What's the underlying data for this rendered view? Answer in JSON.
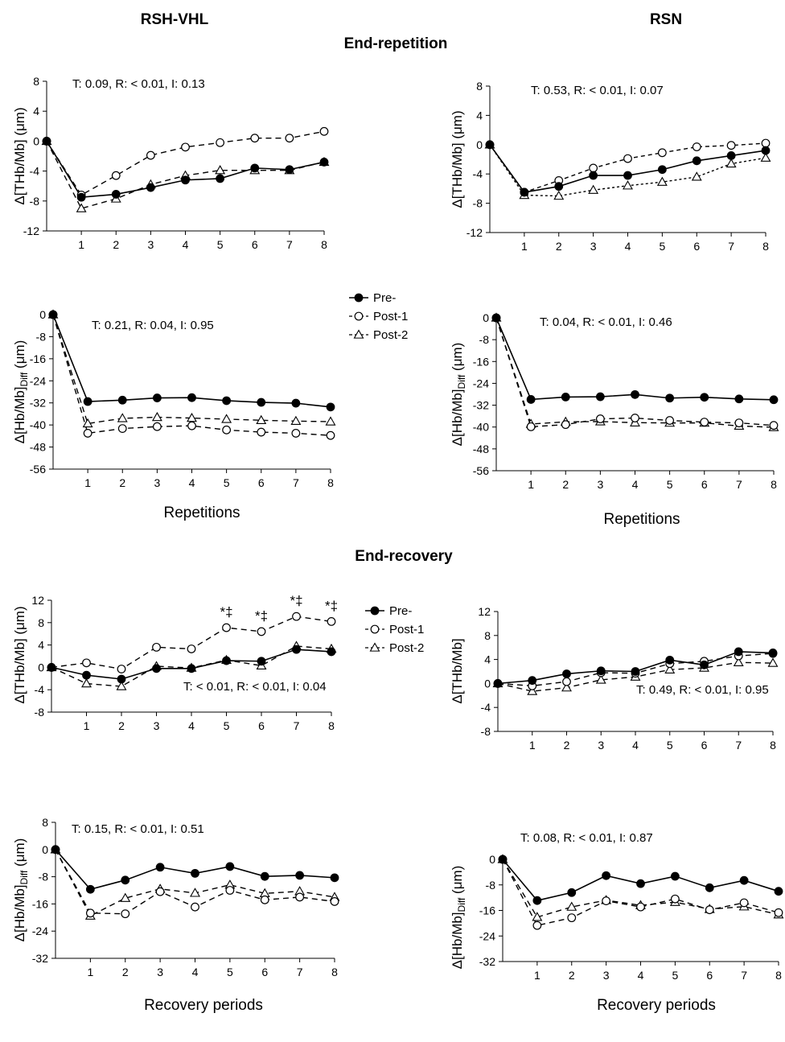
{
  "column_headers": {
    "left": "RSH-VHL",
    "right": "RSN"
  },
  "section_headers": {
    "top": "End-repetition",
    "bottom": "End-recovery"
  },
  "x_titles": {
    "repetitions": "Repetitions",
    "recovery": "Recovery periods"
  },
  "legend": [
    {
      "label": "Pre-",
      "marker": "filled-circle",
      "line": "solid"
    },
    {
      "label": "Post-1",
      "marker": "open-circle",
      "line": "dashed"
    },
    {
      "label": "Post-2",
      "marker": "open-triangle",
      "line": "dashed"
    }
  ],
  "colors": {
    "ink": "#000000",
    "background": "#ffffff"
  },
  "chart_data": [
    {
      "type": "line",
      "title": "",
      "stat_text": "T: 0.09, R: < 0.01, I: 0.13",
      "ylabel_main": "Δ[THb/Mb] (μm)",
      "ylabel_sub": "",
      "xlabel": "",
      "x": [
        0,
        1,
        2,
        3,
        4,
        5,
        6,
        7,
        8
      ],
      "xticks": [
        1,
        2,
        3,
        4,
        5,
        6,
        7,
        8
      ],
      "ylim": [
        -12,
        8
      ],
      "yticks": [
        8,
        4,
        0,
        -4,
        -8,
        -12
      ],
      "series": [
        {
          "name": "Pre-",
          "values": [
            0,
            -7.5,
            -7.1,
            -6.2,
            -5.2,
            -5.0,
            -3.6,
            -3.8,
            -2.8
          ]
        },
        {
          "name": "Post-1",
          "values": [
            0,
            -7.2,
            -4.6,
            -1.9,
            -0.8,
            -0.2,
            0.4,
            0.4,
            1.3
          ]
        },
        {
          "name": "Post-2",
          "values": [
            0,
            -9.0,
            -7.7,
            -5.8,
            -4.6,
            -3.9,
            -3.9,
            -3.9,
            -2.8
          ]
        }
      ],
      "annotations": []
    },
    {
      "type": "line",
      "title": "",
      "stat_text": "T: 0.53, R: < 0.01, I: 0.07",
      "ylabel_main": "Δ[THb/Mb] (μm)",
      "ylabel_sub": "",
      "xlabel": "",
      "x": [
        0,
        1,
        2,
        3,
        4,
        5,
        6,
        7,
        8
      ],
      "xticks": [
        1,
        2,
        3,
        4,
        5,
        6,
        7,
        8
      ],
      "ylim": [
        -12,
        8
      ],
      "yticks": [
        8,
        4,
        0,
        -4,
        -8,
        -12
      ],
      "series": [
        {
          "name": "Pre-",
          "values": [
            0,
            -6.5,
            -5.7,
            -4.2,
            -4.2,
            -3.4,
            -2.2,
            -1.5,
            -0.8
          ]
        },
        {
          "name": "Post-1",
          "values": [
            0,
            -6.5,
            -4.9,
            -3.2,
            -1.9,
            -1.1,
            -0.3,
            -0.1,
            0.2
          ]
        },
        {
          "name": "Post-2",
          "values": [
            0,
            -6.9,
            -7.0,
            -6.2,
            -5.6,
            -5.1,
            -4.4,
            -2.6,
            -1.8
          ]
        }
      ],
      "annotations": []
    },
    {
      "type": "line",
      "title": "",
      "stat_text": "T: 0.21, R: 0.04, I: 0.95",
      "ylabel_main": "Δ[Hb/Mb]",
      "ylabel_sub": "Diff",
      "ylabel_unit": " (μm)",
      "xlabel": "Repetitions",
      "x": [
        0,
        1,
        2,
        3,
        4,
        5,
        6,
        7,
        8
      ],
      "xticks": [
        1,
        2,
        3,
        4,
        5,
        6,
        7,
        8
      ],
      "ylim": [
        -56,
        0
      ],
      "yticks": [
        0,
        -8,
        -16,
        -24,
        -32,
        -40,
        -48,
        -56
      ],
      "series": [
        {
          "name": "Pre-",
          "values": [
            0,
            -31.5,
            -31.0,
            -30.2,
            -30.1,
            -31.2,
            -31.8,
            -32.1,
            -33.5
          ]
        },
        {
          "name": "Post-1",
          "values": [
            0,
            -43.0,
            -41.3,
            -40.6,
            -40.3,
            -41.8,
            -42.6,
            -43.0,
            -43.8
          ]
        },
        {
          "name": "Post-2",
          "values": [
            0,
            -39.5,
            -37.6,
            -37.2,
            -37.5,
            -37.9,
            -38.3,
            -38.6,
            -38.8
          ]
        }
      ],
      "annotations": []
    },
    {
      "type": "line",
      "title": "",
      "stat_text": "T: 0.04, R: < 0.01, I: 0.46",
      "ylabel_main": "Δ[Hb/Mb]",
      "ylabel_sub": "Diff",
      "ylabel_unit": " (μm)",
      "xlabel": "Repetitions",
      "x": [
        0,
        1,
        2,
        3,
        4,
        5,
        6,
        7,
        8
      ],
      "xticks": [
        1,
        2,
        3,
        4,
        5,
        6,
        7,
        8
      ],
      "ylim": [
        -56,
        0
      ],
      "yticks": [
        0,
        -8,
        -16,
        -24,
        -32,
        -40,
        -48,
        -56
      ],
      "series": [
        {
          "name": "Pre-",
          "values": [
            0,
            -29.9,
            -29.0,
            -28.9,
            -28.1,
            -29.4,
            -29.1,
            -29.7,
            -30.0
          ]
        },
        {
          "name": "Post-1",
          "values": [
            0,
            -39.9,
            -39.1,
            -37.0,
            -36.7,
            -37.6,
            -38.2,
            -38.5,
            -39.4
          ]
        },
        {
          "name": "Post-2",
          "values": [
            0,
            -38.9,
            -38.1,
            -38.0,
            -38.4,
            -38.5,
            -38.5,
            -39.6,
            -40.1
          ]
        }
      ],
      "annotations": []
    },
    {
      "type": "line",
      "title": "",
      "stat_text": "T: < 0.01, R: < 0.01, I: 0.04",
      "ylabel_main": "Δ[THb/Mb] (μm)",
      "ylabel_sub": "",
      "xlabel": "",
      "x": [
        0,
        1,
        2,
        3,
        4,
        5,
        6,
        7,
        8
      ],
      "xticks": [
        1,
        2,
        3,
        4,
        5,
        6,
        7,
        8
      ],
      "ylim": [
        -8,
        12
      ],
      "yticks": [
        12,
        8,
        4,
        0,
        -4,
        -8
      ],
      "series": [
        {
          "name": "Pre-",
          "values": [
            0,
            -1.4,
            -2.1,
            -0.2,
            -0.2,
            1.2,
            1.1,
            3.2,
            2.8
          ]
        },
        {
          "name": "Post-1",
          "values": [
            0,
            0.8,
            -0.3,
            3.6,
            3.3,
            7.1,
            6.4,
            9.1,
            8.2
          ]
        },
        {
          "name": "Post-2",
          "values": [
            0,
            -2.9,
            -3.4,
            0.2,
            -0.1,
            1.3,
            0.3,
            3.8,
            3.3
          ]
        }
      ],
      "annotations": [
        {
          "x": 5,
          "text": "*‡"
        },
        {
          "x": 6,
          "text": "*‡"
        },
        {
          "x": 7,
          "text": "*‡"
        },
        {
          "x": 8,
          "text": "*‡"
        }
      ]
    },
    {
      "type": "line",
      "title": "",
      "stat_text": "T: 0.49, R: < 0.01, I: 0.95",
      "ylabel_main": "Δ[THb/Mb]",
      "ylabel_sub": "",
      "xlabel": "",
      "x": [
        0,
        1,
        2,
        3,
        4,
        5,
        6,
        7,
        8
      ],
      "xticks": [
        1,
        2,
        3,
        4,
        5,
        6,
        7,
        8
      ],
      "ylim": [
        -8,
        12
      ],
      "yticks": [
        12,
        8,
        4,
        0,
        -4,
        -8
      ],
      "series": [
        {
          "name": "Pre-",
          "values": [
            0,
            0.5,
            1.6,
            2.1,
            2.0,
            3.9,
            3.1,
            5.3,
            5.1
          ]
        },
        {
          "name": "Post-1",
          "values": [
            0,
            -0.4,
            0.3,
            1.8,
            1.7,
            3.3,
            3.7,
            4.6,
            5.0
          ]
        },
        {
          "name": "Post-2",
          "values": [
            0,
            -1.3,
            -0.7,
            0.6,
            1.1,
            2.3,
            2.6,
            3.5,
            3.4
          ]
        }
      ],
      "annotations": []
    },
    {
      "type": "line",
      "title": "",
      "stat_text": "T: 0.15, R: < 0.01, I: 0.51",
      "ylabel_main": "Δ[Hb/Mb]",
      "ylabel_sub": "Diff",
      "ylabel_unit": " (μm)",
      "xlabel": "Recovery periods",
      "x": [
        0,
        1,
        2,
        3,
        4,
        5,
        6,
        7,
        8
      ],
      "xticks": [
        1,
        2,
        3,
        4,
        5,
        6,
        7,
        8
      ],
      "ylim": [
        -32,
        8
      ],
      "yticks": [
        8,
        0,
        -8,
        -16,
        -24,
        -32
      ],
      "series": [
        {
          "name": "Pre-",
          "values": [
            0,
            -11.7,
            -9.0,
            -5.2,
            -7.0,
            -5.0,
            -7.9,
            -7.6,
            -8.3
          ]
        },
        {
          "name": "Post-1",
          "values": [
            0,
            -18.7,
            -18.9,
            -12.4,
            -16.9,
            -12.0,
            -14.8,
            -14.0,
            -15.3
          ]
        },
        {
          "name": "Post-2",
          "values": [
            0,
            -19.5,
            -14.3,
            -11.6,
            -12.8,
            -10.4,
            -12.9,
            -12.3,
            -14.0
          ]
        }
      ],
      "annotations": []
    },
    {
      "type": "line",
      "title": "",
      "stat_text": "T: 0.08, R: < 0.01, I: 0.87",
      "ylabel_main": "Δ[Hb/Mb]",
      "ylabel_sub": "Diff",
      "ylabel_unit": " (μm)",
      "xlabel": "Recovery periods",
      "x": [
        0,
        1,
        2,
        3,
        4,
        5,
        6,
        7,
        8
      ],
      "xticks": [
        1,
        2,
        3,
        4,
        5,
        6,
        7,
        8
      ],
      "ylim": [
        -32,
        0
      ],
      "yticks": [
        0,
        -8,
        -16,
        -24,
        -32
      ],
      "series": [
        {
          "name": "Pre-",
          "values": [
            0,
            -12.9,
            -10.4,
            -5.1,
            -7.6,
            -5.3,
            -8.9,
            -6.6,
            -10.0
          ]
        },
        {
          "name": "Post-1",
          "values": [
            0,
            -20.7,
            -18.3,
            -13.0,
            -14.9,
            -12.4,
            -15.8,
            -13.6,
            -16.7
          ]
        },
        {
          "name": "Post-2",
          "values": [
            0,
            -18.1,
            -14.9,
            -12.8,
            -14.4,
            -13.4,
            -15.6,
            -14.8,
            -17.3
          ]
        }
      ],
      "annotations": []
    }
  ]
}
